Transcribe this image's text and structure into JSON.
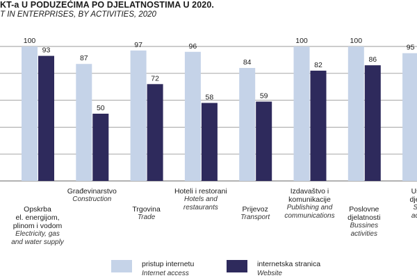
{
  "title": "KT-a U PODUZEĆIMA PO DJELATNOSTIMA U 2020.",
  "subtitle": "T IN ENTERPRISES, BY ACTIVITIES, 2020",
  "colors": {
    "internet_access": "#c5d3e8",
    "website": "#2e2a5c",
    "gridline": "#999999"
  },
  "chart_data": {
    "type": "bar",
    "title": "KT-a U PODUZEĆIMA PO DJELATNOSTIMA U 2020.",
    "subtitle": "T IN ENTERPRISES, BY ACTIVITIES, 2020",
    "ylim": [
      0,
      100
    ],
    "grid": true,
    "legend_position": "bottom",
    "categories": [
      {
        "hr": "Opskrba\nel. energijom,\nplinom i vodom",
        "en": "Electricity, gas\nand water supply"
      },
      {
        "hr": "Građevinarstvo",
        "en": "Construction"
      },
      {
        "hr": "Trgovina",
        "en": "Trade"
      },
      {
        "hr": "Hoteli i restorani",
        "en": "Hotels and restaurants"
      },
      {
        "hr": "Prijevoz",
        "en": "Transport"
      },
      {
        "hr": "Izdavaštvo i\nkomunikacije",
        "en": "Publishing and\ncommunications"
      },
      {
        "hr": "Poslovne\ndjelatnosti",
        "en": "Bussines\nactivities"
      },
      {
        "hr": "Uslu\ndjelat",
        "en": "Ser\nactiv"
      }
    ],
    "series": [
      {
        "name": "pristup internetu",
        "name_en": "Internet access",
        "values": [
          100,
          87,
          97,
          96,
          84,
          100,
          100,
          95
        ]
      },
      {
        "name": "internetska stranica",
        "name_en": "Website",
        "values": [
          93,
          50,
          72,
          58,
          59,
          82,
          86,
          null
        ]
      }
    ]
  },
  "legend": [
    {
      "hr": "pristup internetu",
      "en": "Internet access"
    },
    {
      "hr": "internetska stranica",
      "en": "Website"
    }
  ]
}
